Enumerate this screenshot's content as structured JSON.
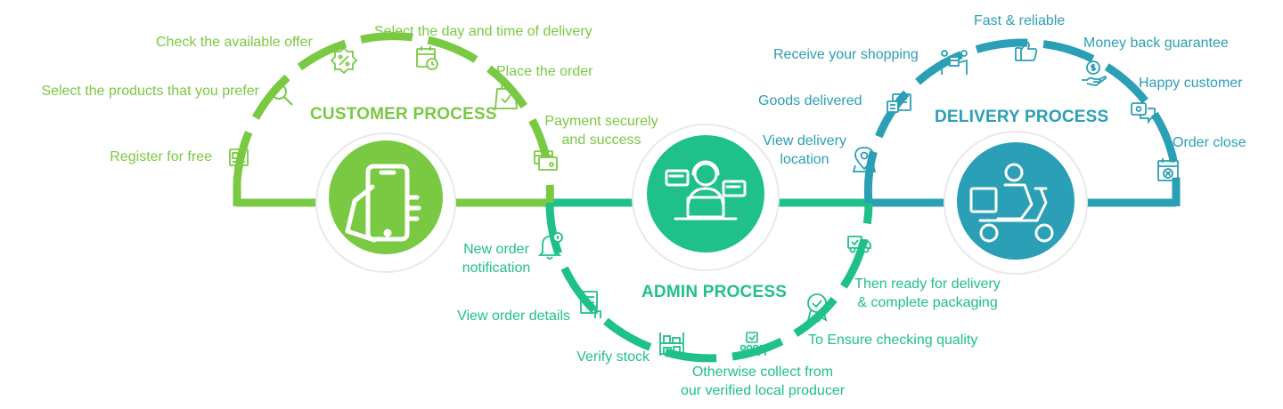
{
  "colors": {
    "customer": "#7ac943",
    "admin": "#1fc08a",
    "delivery": "#2a9fb5",
    "ring": "#e8e8e8"
  },
  "customer": {
    "title": "CUSTOMER PROCESS",
    "steps": {
      "register": "Register for free",
      "select_products": "Select the products that you prefer",
      "check_offer": "Check the available offer",
      "select_day": "Select the day and time of delivery",
      "place_order": "Place the order",
      "payment_line1": "Payment securely",
      "payment_line2": "and success"
    },
    "icons": [
      "registration-form-icon",
      "search-icon",
      "discount-badge-icon",
      "calendar-clock-icon",
      "shopping-bag-icon",
      "credit-card-icon"
    ],
    "hub_icon": "hand-holding-phone-icon"
  },
  "admin": {
    "title": "ADMIN PROCESS",
    "steps": {
      "notification_line1": "New order",
      "notification_line2": "notification",
      "view_details": "View order details",
      "verify_stock": "Verify stock",
      "collect_line1": "Otherwise collect from",
      "collect_line2": "our verified local producer",
      "quality": "To Ensure checking quality",
      "ready_line1": "Then ready for delivery",
      "ready_line2": "& complete packaging"
    },
    "icons": [
      "bell-notification-icon",
      "checklist-icon",
      "warehouse-shelf-icon",
      "farmers-icon",
      "quality-badge-icon",
      "delivery-truck-icon"
    ],
    "hub_icon": "support-agent-laptop-icon"
  },
  "delivery": {
    "title": "DELIVERY PROCESS",
    "steps": {
      "view_location_line1": "View delivery",
      "view_location_line2": "location",
      "goods_delivered": "Goods delivered",
      "receive": "Receive your shopping",
      "fast": "Fast & reliable",
      "money_back": "Money back guarantee",
      "happy": "Happy customer",
      "order_close": "Order close"
    },
    "icons": [
      "map-pin-icon",
      "delivery-document-icon",
      "handover-box-icon",
      "thumbs-up-icon",
      "money-back-hand-icon",
      "chat-bubble-icon",
      "calendar-close-icon"
    ],
    "hub_icon": "scooter-delivery-icon"
  }
}
